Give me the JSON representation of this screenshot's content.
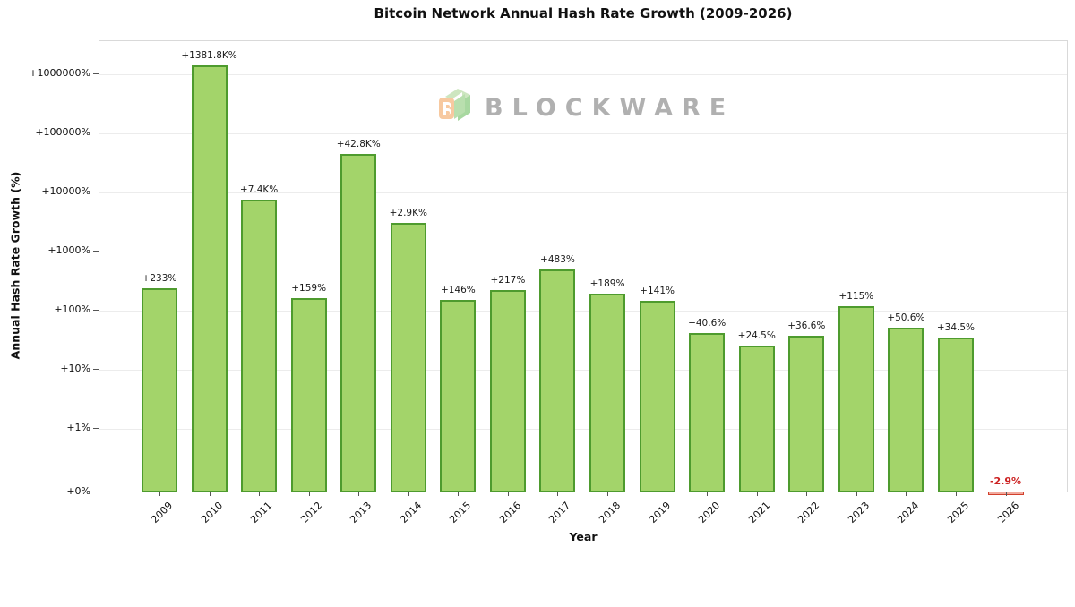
{
  "watermark": {
    "brand": "BLOCKWARE"
  },
  "chart_data": {
    "type": "bar",
    "title": "Bitcoin Network Annual Hash Rate Growth (2009-2026)",
    "xlabel": "Year",
    "ylabel": "Annual Hash Rate Growth (%)",
    "yscale": "symlog",
    "ylim_top_label": "+1000000%",
    "grid": "horizontal major gridlines",
    "legend_position": "none",
    "categories": [
      "2009",
      "2010",
      "2011",
      "2012",
      "2013",
      "2014",
      "2015",
      "2016",
      "2017",
      "2018",
      "2019",
      "2020",
      "2021",
      "2022",
      "2023",
      "2024",
      "2025",
      "2026"
    ],
    "values": [
      233,
      1381800,
      7400,
      159,
      42800,
      2900,
      146,
      217,
      483,
      189,
      141,
      40.6,
      24.5,
      36.6,
      115,
      50.6,
      34.5,
      -2.9
    ],
    "bar_labels": [
      "+233%",
      "+1381.8K%",
      "+7.4K%",
      "+159%",
      "+42.8K%",
      "+2.9K%",
      "+146%",
      "+217%",
      "+483%",
      "+189%",
      "+141%",
      "+40.6%",
      "+24.5%",
      "+36.6%",
      "+115%",
      "+50.6%",
      "+34.5%",
      "-2.9%"
    ],
    "ytick_values": [
      0,
      1,
      10,
      100,
      1000,
      10000,
      100000,
      1000000
    ],
    "ytick_labels": [
      "+0%",
      "+1%",
      "+10%",
      "+100%",
      "+1000%",
      "+10000%",
      "+100000%",
      "+1000000%"
    ],
    "colors": {
      "bar_fill": "#a3d46a",
      "bar_edge": "#4e9b2e",
      "negative_fill": "#f1a99d",
      "negative_edge": "#d2402c",
      "negative_label": "#cc2222",
      "gridline": "#ececec",
      "spine": "#d9d9d9",
      "text": "#111111",
      "watermark_gray": "#b0b0b0",
      "logo_peach": "#f7c9a0",
      "logo_green_light": "#cde6c0",
      "logo_green": "#a8d8a0"
    }
  }
}
